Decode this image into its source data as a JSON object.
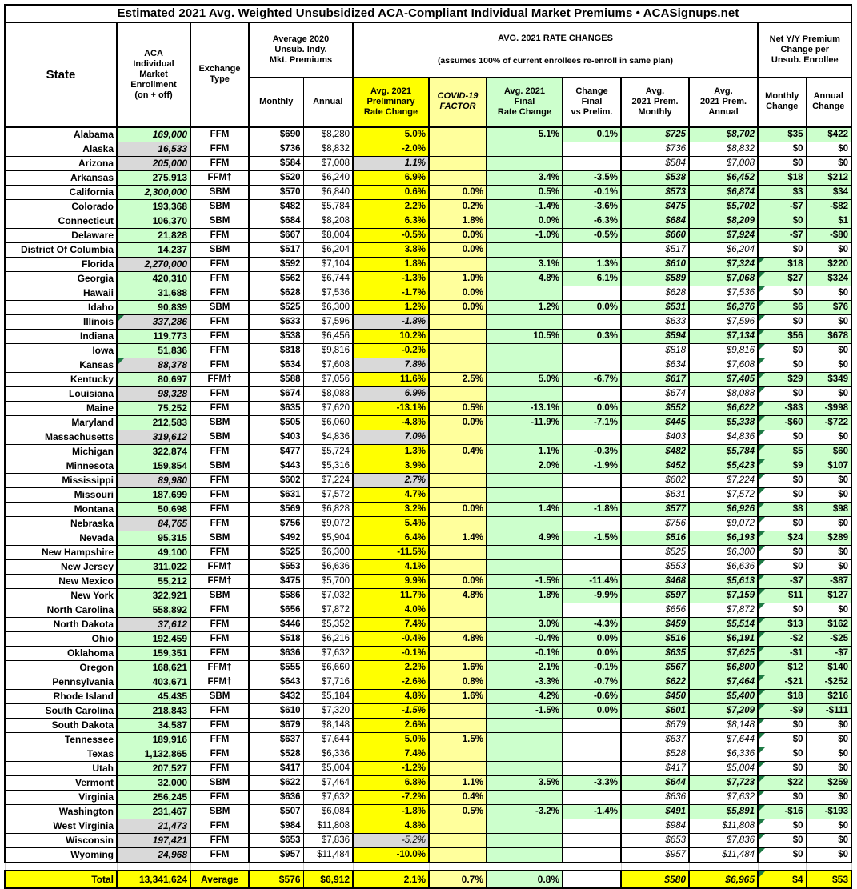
{
  "colors": {
    "highlight_yellow": "#FFFF00",
    "light_yellow": "#FFFF9C",
    "light_green": "#CCFFCC",
    "estimate_gray": "#D9D9D9",
    "comment_marker_green": "#1E7B45",
    "border": "#000000"
  },
  "headers": {
    "state": "State",
    "enrollment": "ACA\nIndividual\nMarket\nEnrollment\n(on + off)",
    "exchange_type": "Exchange\nType",
    "avg_2020_group": "Average 2020\nUnsub. Indy.\nMkt. Premiums",
    "monthly": "Monthly",
    "annual": "Annual",
    "rate_changes_line1": "AVG. 2021 RATE CHANGES",
    "rate_changes_line2": "(assumes 100% of current enrollees re-enroll in same plan)",
    "prelim": "Avg. 2021\nPreliminary\nRate Change",
    "covid": "COVID-19\nFACTOR",
    "final": "Avg. 2021\nFinal\nRate Change",
    "change_vs_prelim": "Change\nFinal\nvs Prelim.",
    "prem_monthly": "Avg.\n2021 Prem.\nMonthly",
    "prem_annual": "Avg.\n2021 Prem.\nAnnual",
    "net_group": "Net Y/Y Premium\nChange per\nUnsub. Enrollee",
    "monthly_change": "Monthly\nChange",
    "annual_change": "Annual\nChange"
  },
  "chart_data": {
    "type": "table",
    "title": "Estimated 2021 Avg. Weighted Unsubsidized ACA-Compliant Individual Market Premiums • ACASignups.net",
    "columns": [
      "State",
      "ACA Individual Market Enrollment (on + off)",
      "Exchange Type",
      "Average 2020 Unsub. Monthly Premium",
      "Average 2020 Unsub. Annual Premium",
      "Avg. 2021 Preliminary Rate Change",
      "COVID-19 Factor",
      "Avg. 2021 Final Rate Change",
      "Change Final vs Prelim.",
      "Avg. 2021 Premium Monthly",
      "Avg. 2021 Premium Annual",
      "Net Y/Y Monthly Change",
      "Net Y/Y Annual Change"
    ],
    "rows": [
      [
        "Alabama",
        "169,000",
        "FFM",
        "$690",
        "$8,280",
        "5.0%",
        "",
        "5.1%",
        "0.1%",
        "$725",
        "$8,702",
        "$35",
        "$422"
      ],
      [
        "Alaska",
        "16,533",
        "FFM",
        "$736",
        "$8,832",
        "-2.0%",
        "",
        "",
        "",
        "$736",
        "$8,832",
        "$0",
        "$0"
      ],
      [
        "Arizona",
        "205,000",
        "FFM",
        "$584",
        "$7,008",
        "1.1%",
        "",
        "",
        "",
        "$584",
        "$7,008",
        "$0",
        "$0"
      ],
      [
        "Arkansas",
        "275,913",
        "FFM†",
        "$520",
        "$6,240",
        "6.9%",
        "",
        "3.4%",
        "-3.5%",
        "$538",
        "$6,452",
        "$18",
        "$212"
      ],
      [
        "California",
        "2,300,000",
        "SBM",
        "$570",
        "$6,840",
        "0.6%",
        "0.0%",
        "0.5%",
        "-0.1%",
        "$573",
        "$6,874",
        "$3",
        "$34"
      ],
      [
        "Colorado",
        "193,368",
        "SBM",
        "$482",
        "$5,784",
        "2.2%",
        "0.2%",
        "-1.4%",
        "-3.6%",
        "$475",
        "$5,702",
        "-$7",
        "-$82"
      ],
      [
        "Connecticut",
        "106,370",
        "SBM",
        "$684",
        "$8,208",
        "6.3%",
        "1.8%",
        "0.0%",
        "-6.3%",
        "$684",
        "$8,209",
        "$0",
        "$1"
      ],
      [
        "Delaware",
        "21,828",
        "FFM",
        "$667",
        "$8,004",
        "-0.5%",
        "0.0%",
        "-1.0%",
        "-0.5%",
        "$660",
        "$7,924",
        "-$7",
        "-$80"
      ],
      [
        "District Of Columbia",
        "14,237",
        "SBM",
        "$517",
        "$6,204",
        "3.8%",
        "0.0%",
        "",
        "",
        "$517",
        "$6,204",
        "$0",
        "$0"
      ],
      [
        "Florida",
        "2,270,000",
        "FFM",
        "$592",
        "$7,104",
        "1.8%",
        "",
        "3.1%",
        "1.3%",
        "$610",
        "$7,324",
        "$18",
        "$220"
      ],
      [
        "Georgia",
        "420,310",
        "FFM",
        "$562",
        "$6,744",
        "-1.3%",
        "1.0%",
        "4.8%",
        "6.1%",
        "$589",
        "$7,068",
        "$27",
        "$324"
      ],
      [
        "Hawaii",
        "31,688",
        "FFM",
        "$628",
        "$7,536",
        "-1.7%",
        "0.0%",
        "",
        "",
        "$628",
        "$7,536",
        "$0",
        "$0"
      ],
      [
        "Idaho",
        "90,839",
        "SBM",
        "$525",
        "$6,300",
        "1.2%",
        "0.0%",
        "1.2%",
        "0.0%",
        "$531",
        "$6,376",
        "$6",
        "$76"
      ],
      [
        "Illinois",
        "337,286",
        "FFM",
        "$633",
        "$7,596",
        "-1.8%",
        "",
        "",
        "",
        "$633",
        "$7,596",
        "$0",
        "$0"
      ],
      [
        "Indiana",
        "119,773",
        "FFM",
        "$538",
        "$6,456",
        "10.2%",
        "",
        "10.5%",
        "0.3%",
        "$594",
        "$7,134",
        "$56",
        "$678"
      ],
      [
        "Iowa",
        "51,836",
        "FFM",
        "$818",
        "$9,816",
        "-0.2%",
        "",
        "",
        "",
        "$818",
        "$9,816",
        "$0",
        "$0"
      ],
      [
        "Kansas",
        "88,378",
        "FFM",
        "$634",
        "$7,608",
        "7.8%",
        "",
        "",
        "",
        "$634",
        "$7,608",
        "$0",
        "$0"
      ],
      [
        "Kentucky",
        "80,697",
        "FFM†",
        "$588",
        "$7,056",
        "11.6%",
        "2.5%",
        "5.0%",
        "-6.7%",
        "$617",
        "$7,405",
        "$29",
        "$349"
      ],
      [
        "Louisiana",
        "98,328",
        "FFM",
        "$674",
        "$8,088",
        "6.9%",
        "",
        "",
        "",
        "$674",
        "$8,088",
        "$0",
        "$0"
      ],
      [
        "Maine",
        "75,252",
        "FFM",
        "$635",
        "$7,620",
        "-13.1%",
        "0.5%",
        "-13.1%",
        "0.0%",
        "$552",
        "$6,622",
        "-$83",
        "-$998"
      ],
      [
        "Maryland",
        "212,583",
        "SBM",
        "$505",
        "$6,060",
        "-4.8%",
        "0.0%",
        "-11.9%",
        "-7.1%",
        "$445",
        "$5,338",
        "-$60",
        "-$722"
      ],
      [
        "Massachusetts",
        "319,612",
        "SBM",
        "$403",
        "$4,836",
        "7.0%",
        "",
        "",
        "",
        "$403",
        "$4,836",
        "$0",
        "$0"
      ],
      [
        "Michigan",
        "322,874",
        "FFM",
        "$477",
        "$5,724",
        "1.3%",
        "0.4%",
        "1.1%",
        "-0.3%",
        "$482",
        "$5,784",
        "$5",
        "$60"
      ],
      [
        "Minnesota",
        "159,854",
        "SBM",
        "$443",
        "$5,316",
        "3.9%",
        "",
        "2.0%",
        "-1.9%",
        "$452",
        "$5,423",
        "$9",
        "$107"
      ],
      [
        "Mississippi",
        "89,980",
        "FFM",
        "$602",
        "$7,224",
        "2.7%",
        "",
        "",
        "",
        "$602",
        "$7,224",
        "$0",
        "$0"
      ],
      [
        "Missouri",
        "187,699",
        "FFM",
        "$631",
        "$7,572",
        "4.7%",
        "",
        "",
        "",
        "$631",
        "$7,572",
        "$0",
        "$0"
      ],
      [
        "Montana",
        "50,698",
        "FFM",
        "$569",
        "$6,828",
        "3.2%",
        "0.0%",
        "1.4%",
        "-1.8%",
        "$577",
        "$6,926",
        "$8",
        "$98"
      ],
      [
        "Nebraska",
        "84,765",
        "FFM",
        "$756",
        "$9,072",
        "5.4%",
        "",
        "",
        "",
        "$756",
        "$9,072",
        "$0",
        "$0"
      ],
      [
        "Nevada",
        "95,315",
        "SBM",
        "$492",
        "$5,904",
        "6.4%",
        "1.4%",
        "4.9%",
        "-1.5%",
        "$516",
        "$6,193",
        "$24",
        "$289"
      ],
      [
        "New Hampshire",
        "49,100",
        "FFM",
        "$525",
        "$6,300",
        "-11.5%",
        "",
        "",
        "",
        "$525",
        "$6,300",
        "$0",
        "$0"
      ],
      [
        "New Jersey",
        "311,022",
        "FFM†",
        "$553",
        "$6,636",
        "4.1%",
        "",
        "",
        "",
        "$553",
        "$6,636",
        "$0",
        "$0"
      ],
      [
        "New Mexico",
        "55,212",
        "FFM†",
        "$475",
        "$5,700",
        "9.9%",
        "0.0%",
        "-1.5%",
        "-11.4%",
        "$468",
        "$5,613",
        "-$7",
        "-$87"
      ],
      [
        "New York",
        "322,921",
        "SBM",
        "$586",
        "$7,032",
        "11.7%",
        "4.8%",
        "1.8%",
        "-9.9%",
        "$597",
        "$7,159",
        "$11",
        "$127"
      ],
      [
        "North Carolina",
        "558,892",
        "FFM",
        "$656",
        "$7,872",
        "4.0%",
        "",
        "",
        "",
        "$656",
        "$7,872",
        "$0",
        "$0"
      ],
      [
        "North Dakota",
        "37,612",
        "FFM",
        "$446",
        "$5,352",
        "7.4%",
        "",
        "3.0%",
        "-4.3%",
        "$459",
        "$5,514",
        "$13",
        "$162"
      ],
      [
        "Ohio",
        "192,459",
        "FFM",
        "$518",
        "$6,216",
        "-0.4%",
        "4.8%",
        "-0.4%",
        "0.0%",
        "$516",
        "$6,191",
        "-$2",
        "-$25"
      ],
      [
        "Oklahoma",
        "159,351",
        "FFM",
        "$636",
        "$7,632",
        "-0.1%",
        "",
        "-0.1%",
        "0.0%",
        "$635",
        "$7,625",
        "-$1",
        "-$7"
      ],
      [
        "Oregon",
        "168,621",
        "FFM†",
        "$555",
        "$6,660",
        "2.2%",
        "1.6%",
        "2.1%",
        "-0.1%",
        "$567",
        "$6,800",
        "$12",
        "$140"
      ],
      [
        "Pennsylvania",
        "403,671",
        "FFM†",
        "$643",
        "$7,716",
        "-2.6%",
        "0.8%",
        "-3.3%",
        "-0.7%",
        "$622",
        "$7,464",
        "-$21",
        "-$252"
      ],
      [
        "Rhode Island",
        "45,435",
        "SBM",
        "$432",
        "$5,184",
        "4.8%",
        "1.6%",
        "4.2%",
        "-0.6%",
        "$450",
        "$5,400",
        "$18",
        "$216"
      ],
      [
        "South Carolina",
        "218,843",
        "FFM",
        "$610",
        "$7,320",
        "-1.5%",
        "",
        "-1.5%",
        "0.0%",
        "$601",
        "$7,209",
        "-$9",
        "-$111"
      ],
      [
        "South Dakota",
        "34,587",
        "FFM",
        "$679",
        "$8,148",
        "2.6%",
        "",
        "",
        "",
        "$679",
        "$8,148",
        "$0",
        "$0"
      ],
      [
        "Tennessee",
        "189,916",
        "FFM",
        "$637",
        "$7,644",
        "5.0%",
        "1.5%",
        "",
        "",
        "$637",
        "$7,644",
        "$0",
        "$0"
      ],
      [
        "Texas",
        "1,132,865",
        "FFM",
        "$528",
        "$6,336",
        "7.4%",
        "",
        "",
        "",
        "$528",
        "$6,336",
        "$0",
        "$0"
      ],
      [
        "Utah",
        "207,527",
        "FFM",
        "$417",
        "$5,004",
        "-1.2%",
        "",
        "",
        "",
        "$417",
        "$5,004",
        "$0",
        "$0"
      ],
      [
        "Vermont",
        "32,000",
        "SBM",
        "$622",
        "$7,464",
        "6.8%",
        "1.1%",
        "3.5%",
        "-3.3%",
        "$644",
        "$7,723",
        "$22",
        "$259"
      ],
      [
        "Virginia",
        "256,245",
        "FFM",
        "$636",
        "$7,632",
        "-7.2%",
        "0.4%",
        "",
        "",
        "$636",
        "$7,632",
        "$0",
        "$0"
      ],
      [
        "Washington",
        "231,467",
        "SBM",
        "$507",
        "$6,084",
        "-1.8%",
        "0.5%",
        "-3.2%",
        "-1.4%",
        "$491",
        "$5,891",
        "-$16",
        "-$193"
      ],
      [
        "West Virginia",
        "21,473",
        "FFM",
        "$984",
        "$11,808",
        "4.8%",
        "",
        "",
        "",
        "$984",
        "$11,808",
        "$0",
        "$0"
      ],
      [
        "Wisconsin",
        "197,421",
        "FFM",
        "$653",
        "$7,836",
        "-5.2%",
        "",
        "",
        "",
        "$653",
        "$7,836",
        "$0",
        "$0"
      ],
      [
        "Wyoming",
        "24,968",
        "FFM",
        "$957",
        "$11,484",
        "-10.0%",
        "",
        "",
        "",
        "$957",
        "$11,484",
        "$0",
        "$0"
      ]
    ],
    "total_row": [
      "Total",
      "13,341,624",
      "Average",
      "$576",
      "$6,912",
      "2.1%",
      "0.7%",
      "0.8%",
      "",
      "$580",
      "$6,965",
      "$4",
      "$53"
    ]
  },
  "row_styles": [
    {
      "e": "gi"
    },
    {
      "e": "gr"
    },
    {
      "e": "gr",
      "p": "gi"
    },
    {},
    {
      "e": "gi"
    },
    {},
    {},
    {},
    {},
    {
      "e": "gr",
      "t": 1
    },
    {
      "t": 1
    },
    {
      "t": 1
    },
    {
      "t": 1
    },
    {
      "e": "gr",
      "p": "gi",
      "te": 1,
      "t": 1
    },
    {
      "t": 1
    },
    {
      "t": 1
    },
    {
      "e": "gr",
      "p": "gi",
      "te": 1,
      "t": 1
    },
    {
      "t": 1
    },
    {
      "e": "gr",
      "p": "gi",
      "t": 1
    },
    {
      "t": 1
    },
    {
      "t": 1
    },
    {
      "e": "gr",
      "p": "gi",
      "t": 1
    },
    {
      "t": 1
    },
    {
      "t": 1
    },
    {
      "e": "gr",
      "p": "gi",
      "t": 1
    },
    {
      "t": 1
    },
    {
      "t": 1
    },
    {
      "e": "gr",
      "t": 1
    },
    {
      "t": 1
    },
    {
      "t": 1
    },
    {
      "t": 1
    },
    {
      "t": 1
    },
    {
      "t": 1
    },
    {
      "t": 1
    },
    {
      "e": "gr",
      "t": 1
    },
    {
      "t": 1
    },
    {
      "t": 1
    },
    {
      "t": 1
    },
    {
      "t": 1
    },
    {
      "t": 1
    },
    {
      "p": "yi",
      "t": 1
    },
    {
      "t": 1
    },
    {
      "t": 1
    },
    {
      "t": 1
    },
    {
      "t": 1
    },
    {
      "t": 1
    },
    {
      "t": 1
    },
    {
      "t": 1
    },
    {
      "e": "gr",
      "t": 1
    },
    {
      "e": "gr",
      "p": "gn",
      "t": 1
    },
    {
      "e": "gr",
      "t": 1
    }
  ],
  "total_style": {
    "tri": 1
  }
}
